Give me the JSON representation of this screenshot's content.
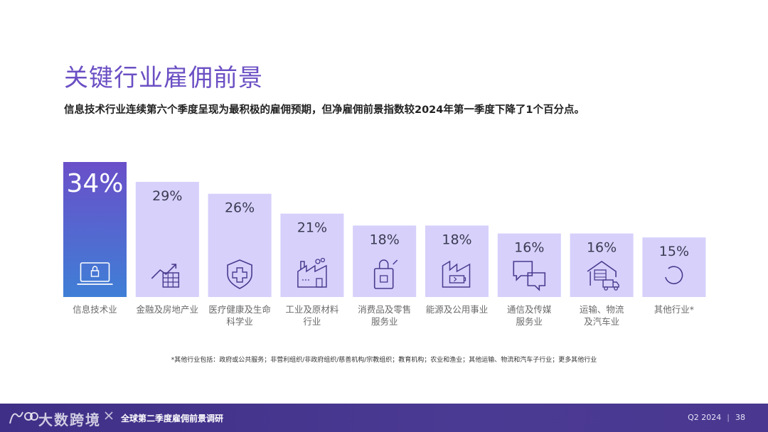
{
  "title": "关键行业雇佣前景",
  "subtitle": "信息技术行业连续第六个季度呈现为最积极的雇佣预期，但净雇佣前景指数较2024年第一季度下降了1个百分点。",
  "chart_data": {
    "type": "bar",
    "unit": "%",
    "ylim": [
      0,
      34
    ],
    "categories": [
      [
        "信息技术业"
      ],
      [
        "金融及房地产业"
      ],
      [
        "医疗健康及生命",
        "科学业"
      ],
      [
        "工业及原材料",
        "行业"
      ],
      [
        "消费品及零售",
        "服务业"
      ],
      [
        "能源及公用事业"
      ],
      [
        "通信及传媒",
        "服务业"
      ],
      [
        "运输、物流",
        "及汽车业"
      ],
      [
        "其他行业*"
      ]
    ],
    "values": [
      34,
      29,
      26,
      21,
      18,
      18,
      16,
      16,
      15
    ],
    "icons": [
      "laptop-lock-icon",
      "finance-chart-icon",
      "health-shield-icon",
      "factory-icon",
      "shopping-bag-icon",
      "energy-battery-icon",
      "chat-bubbles-icon",
      "warehouse-truck-icon",
      "loading-circle-icon"
    ],
    "colors": {
      "highlight_top": "#6a4fc9",
      "highlight_bottom": "#3f7fd6",
      "bar": "#d6d0fb",
      "icon": "#4a3a8e",
      "label": "#6a6a6a"
    }
  },
  "footnote": "*其他行业包括：政府或公共服务；非营利组织/非政府组织/慈善机构/宗教组织；教育机构；农业和渔业；其他运输、物流和汽车子行业；更多其他行业",
  "footer": {
    "brand": "大数跨境",
    "report_name": "全球第二季度雇佣前景调研",
    "period": "Q2 2024",
    "separator": "|",
    "page_number": "38"
  }
}
